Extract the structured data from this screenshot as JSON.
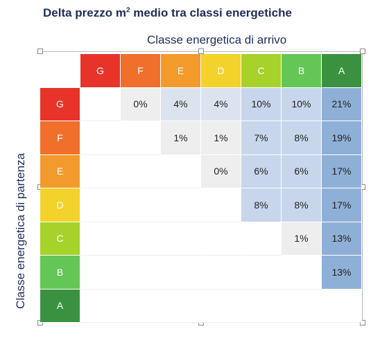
{
  "title_main": "Delta prezzo m",
  "title_sup": "2",
  "title_rest": " medio tra classi energetiche",
  "chart_data": {
    "type": "heatmap",
    "title": "Delta prezzo m² medio tra classi energetiche",
    "xlabel": "Classe energetica di arrivo",
    "ylabel": "Classe energetica di partenza",
    "columns": [
      "G",
      "F",
      "E",
      "D",
      "C",
      "B",
      "A"
    ],
    "rows": [
      "G",
      "F",
      "E",
      "D",
      "C",
      "B",
      "A"
    ],
    "values": [
      [
        null,
        "0%",
        "4%",
        "4%",
        "10%",
        "10%",
        "21%"
      ],
      [
        null,
        null,
        "1%",
        "1%",
        "7%",
        "8%",
        "19%"
      ],
      [
        null,
        null,
        null,
        "0%",
        "6%",
        "6%",
        "17%"
      ],
      [
        null,
        null,
        null,
        null,
        "8%",
        "8%",
        "17%"
      ],
      [
        null,
        null,
        null,
        null,
        null,
        "1%",
        "13%"
      ],
      [
        null,
        null,
        null,
        null,
        null,
        null,
        "13%"
      ],
      [
        null,
        null,
        null,
        null,
        null,
        null,
        null
      ]
    ],
    "class_colors": {
      "G": "#e8332a",
      "F": "#ef6f2b",
      "E": "#f39a2d",
      "D": "#f3d22b",
      "C": "#a6d22a",
      "B": "#64c657",
      "A": "#3a9240"
    },
    "cell_colors": {
      "low": "#eeeeee",
      "mid": "#dbe3ee",
      "high": "#c7d6ea",
      "top": "#8fb0d6"
    }
  }
}
